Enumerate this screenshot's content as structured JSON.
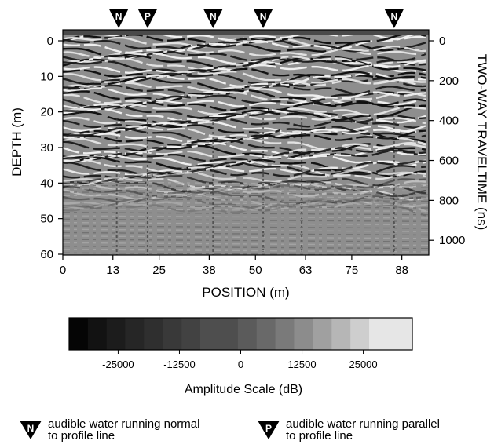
{
  "chart_data": {
    "type": "heatmap",
    "title": "",
    "xlabel": "POSITION (m)",
    "ylabel": "DEPTH (m)",
    "y2label": "TWO-WAY TRAVELTIME (ns)",
    "xlim": [
      0,
      95
    ],
    "ylim": [
      0,
      60
    ],
    "y2lim": [
      0,
      1070
    ],
    "x_ticks": [
      0,
      13,
      25,
      38,
      50,
      63,
      75,
      88
    ],
    "x_tick_labels": [
      "0",
      "13",
      "25",
      "38",
      "50",
      "63",
      "75",
      "88"
    ],
    "y_ticks": [
      0,
      10,
      20,
      30,
      40,
      50,
      60
    ],
    "y_tick_labels": [
      "0",
      "10",
      "20",
      "30",
      "40",
      "50",
      "60"
    ],
    "y2_ticks": [
      0,
      200,
      400,
      600,
      800,
      1000
    ],
    "y2_tick_labels": [
      "0",
      "200",
      "400",
      "600",
      "800",
      "1000"
    ],
    "markers": [
      {
        "type": "N",
        "position": 14.5
      },
      {
        "type": "P",
        "position": 22
      },
      {
        "type": "N",
        "position": 39
      },
      {
        "type": "N",
        "position": 52
      },
      {
        "type": "N",
        "position": 86
      }
    ],
    "colorbar": {
      "label": "Amplitude Scale (dB)",
      "range": [
        -35000,
        35000
      ],
      "ticks": [
        -25000,
        -12500,
        0,
        12500,
        25000
      ],
      "tick_labels": [
        "-25000",
        "-12500",
        "0",
        "12500",
        "25000"
      ],
      "colors": [
        "#050505",
        "#121212",
        "#1c1c1c",
        "#262626",
        "#2f2f2f",
        "#393939",
        "#424242",
        "#4e4e4e",
        "#5b5b5b",
        "#696969",
        "#7a7a7a",
        "#8c8c8c",
        "#a0a0a0",
        "#b6b6b6",
        "#cecece",
        "#e6e6e6"
      ]
    },
    "legend": [
      {
        "symbol": "N",
        "text": "audible water running normal\nto profile line"
      },
      {
        "symbol": "P",
        "text": "audible water running parallel\nto profile line"
      }
    ]
  }
}
